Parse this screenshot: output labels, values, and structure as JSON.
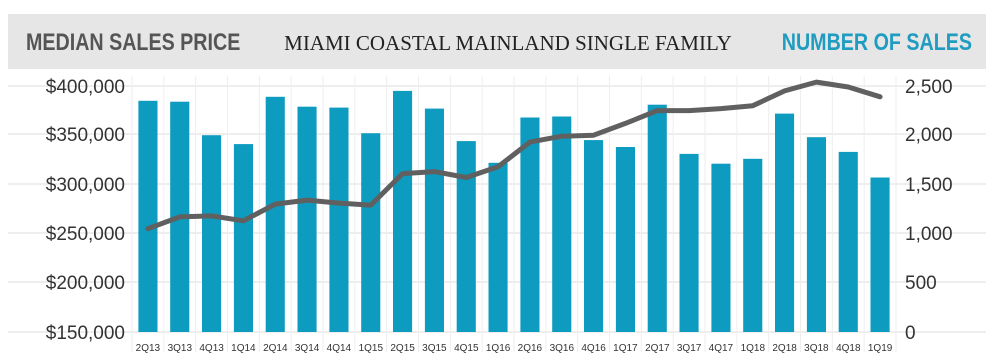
{
  "header": {
    "left_title": "MEDIAN SALES PRICE",
    "center_title": "MIAMI COASTAL MAINLAND SINGLE FAMILY",
    "right_title": "NUMBER OF SALES"
  },
  "colors": {
    "bar": "#0d9bbf",
    "line": "#606060",
    "accent": "#1f9cc0",
    "header_bg": "#e6e6e6"
  },
  "chart_data": {
    "type": "bar",
    "categories": [
      "2Q13",
      "3Q13",
      "4Q13",
      "1Q14",
      "2Q14",
      "3Q14",
      "4Q14",
      "1Q15",
      "2Q15",
      "3Q15",
      "4Q15",
      "1Q16",
      "2Q16",
      "3Q16",
      "4Q16",
      "1Q17",
      "2Q17",
      "3Q17",
      "4Q17",
      "1Q18",
      "2Q18",
      "3Q18",
      "4Q18",
      "1Q19"
    ],
    "series": [
      {
        "axis": "left",
        "type": "bar",
        "values": [
          385000,
          384000,
          350000,
          341000,
          389000,
          379000,
          378000,
          352000,
          395000,
          377000,
          344000,
          322000,
          368000,
          369000,
          345000,
          338000,
          381000,
          331000,
          321000,
          326000,
          372000,
          348000,
          333000,
          307000
        ]
      },
      {
        "axis": "right",
        "type": "line",
        "values": [
          1050,
          1170,
          1180,
          1130,
          1300,
          1340,
          1310,
          1290,
          1610,
          1630,
          1570,
          1680,
          1930,
          1990,
          2000,
          2120,
          2250,
          2250,
          2270,
          2300,
          2450,
          2540,
          2490,
          2390
        ]
      }
    ],
    "y_left": {
      "ticks": [
        "$150,000",
        "$200,000",
        "$250,000",
        "$300,000",
        "$350,000",
        "$400,000"
      ],
      "lim": [
        150000,
        400000
      ]
    },
    "y_right": {
      "ticks": [
        "0",
        "500",
        "1,000",
        "1,500",
        "2,000",
        "2,500"
      ],
      "lim": [
        0,
        2500
      ]
    },
    "grid": true,
    "legend": "none"
  }
}
